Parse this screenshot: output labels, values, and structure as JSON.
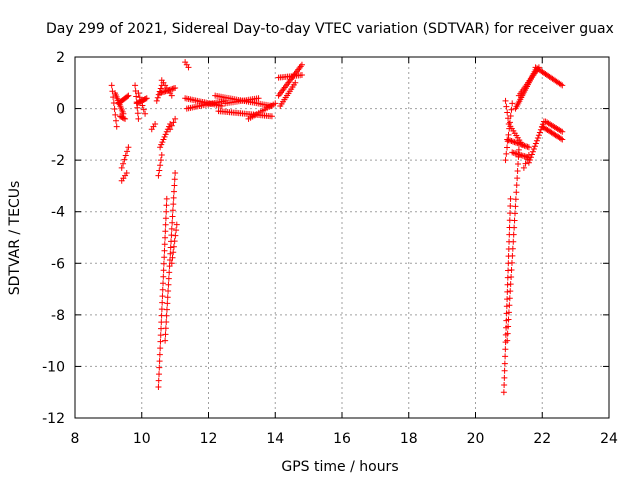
{
  "chart_data": {
    "type": "scatter",
    "title": "Day 299 of 2021, Sidereal Day-to-day VTEC variation (SDTVAR) for receiver guax",
    "xlabel": "GPS time / hours",
    "ylabel": "SDTVAR / TECUs",
    "xlim": [
      8,
      24
    ],
    "ylim": [
      -12,
      2
    ],
    "xticks": [
      "8",
      "10",
      "12",
      "14",
      "16",
      "18",
      "20",
      "22",
      "24"
    ],
    "yticks": [
      "2",
      "0",
      "-2",
      "-4",
      "-6",
      "-8",
      "-10",
      "-12"
    ],
    "grid": true,
    "marker": "+",
    "color": "#ff0000",
    "segments": [
      {
        "x0": 9.1,
        "y0": 0.9,
        "x1": 9.25,
        "y1": -0.7,
        "n": 8
      },
      {
        "x0": 9.2,
        "y0": 0.6,
        "x1": 9.45,
        "y1": -0.2,
        "n": 12
      },
      {
        "x0": 9.3,
        "y0": 0.2,
        "x1": 9.6,
        "y1": 0.5,
        "n": 10
      },
      {
        "x0": 9.35,
        "y0": -0.3,
        "x1": 9.5,
        "y1": -0.4,
        "n": 5
      },
      {
        "x0": 9.4,
        "y0": -2.3,
        "x1": 9.6,
        "y1": -1.5,
        "n": 6
      },
      {
        "x0": 9.4,
        "y0": -2.8,
        "x1": 9.55,
        "y1": -2.5,
        "n": 4
      },
      {
        "x0": 9.8,
        "y0": 0.9,
        "x1": 9.9,
        "y1": -0.4,
        "n": 7
      },
      {
        "x0": 9.85,
        "y0": 0.2,
        "x1": 10.15,
        "y1": 0.4,
        "n": 10
      },
      {
        "x0": 9.9,
        "y0": 0.6,
        "x1": 10.1,
        "y1": -0.2,
        "n": 6
      },
      {
        "x0": 10.3,
        "y0": -0.8,
        "x1": 10.4,
        "y1": -0.6,
        "n": 3
      },
      {
        "x0": 10.45,
        "y0": 0.3,
        "x1": 10.6,
        "y1": 0.9,
        "n": 6
      },
      {
        "x0": 10.55,
        "y0": 0.6,
        "x1": 11.0,
        "y1": 0.8,
        "n": 12
      },
      {
        "x0": 10.6,
        "y0": 1.1,
        "x1": 10.9,
        "y1": 0.5,
        "n": 7
      },
      {
        "x0": 10.5,
        "y0": -10.8,
        "x1": 10.75,
        "y1": -3.5,
        "n": 30
      },
      {
        "x0": 10.5,
        "y0": -2.6,
        "x1": 10.6,
        "y1": -1.8,
        "n": 5
      },
      {
        "x0": 10.55,
        "y0": -1.5,
        "x1": 10.85,
        "y1": -0.6,
        "n": 10
      },
      {
        "x0": 10.7,
        "y0": -9.0,
        "x1": 11.0,
        "y1": -2.5,
        "n": 28
      },
      {
        "x0": 10.9,
        "y0": -6.0,
        "x1": 11.05,
        "y1": -4.5,
        "n": 8
      },
      {
        "x0": 10.85,
        "y0": -0.8,
        "x1": 11.0,
        "y1": -0.4,
        "n": 4
      },
      {
        "x0": 11.3,
        "y0": 1.8,
        "x1": 11.4,
        "y1": 1.6,
        "n": 3
      },
      {
        "x0": 11.3,
        "y0": 0.4,
        "x1": 12.4,
        "y1": 0.1,
        "n": 22
      },
      {
        "x0": 11.35,
        "y0": 0.0,
        "x1": 12.5,
        "y1": 0.3,
        "n": 22
      },
      {
        "x0": 12.2,
        "y0": 0.5,
        "x1": 13.9,
        "y1": 0.1,
        "n": 30
      },
      {
        "x0": 12.3,
        "y0": -0.1,
        "x1": 13.9,
        "y1": -0.3,
        "n": 30
      },
      {
        "x0": 12.5,
        "y0": 0.2,
        "x1": 13.5,
        "y1": 0.4,
        "n": 18
      },
      {
        "x0": 13.2,
        "y0": -0.4,
        "x1": 14.0,
        "y1": 0.2,
        "n": 14
      },
      {
        "x0": 14.1,
        "y0": 0.5,
        "x1": 14.8,
        "y1": 1.7,
        "n": 20
      },
      {
        "x0": 14.1,
        "y0": 1.2,
        "x1": 14.8,
        "y1": 1.3,
        "n": 14
      },
      {
        "x0": 14.15,
        "y0": 0.1,
        "x1": 14.6,
        "y1": 1.0,
        "n": 12
      },
      {
        "x0": 20.85,
        "y0": -11.0,
        "x1": 21.05,
        "y1": -3.5,
        "n": 28
      },
      {
        "x0": 20.95,
        "y0": -9.0,
        "x1": 21.3,
        "y1": -1.6,
        "n": 28
      },
      {
        "x0": 20.9,
        "y0": -2.0,
        "x1": 21.1,
        "y1": 0.2,
        "n": 10
      },
      {
        "x0": 20.9,
        "y0": 0.3,
        "x1": 21.0,
        "y1": -0.6,
        "n": 5
      },
      {
        "x0": 20.95,
        "y0": -1.2,
        "x1": 21.6,
        "y1": -1.5,
        "n": 16
      },
      {
        "x0": 21.0,
        "y0": -0.6,
        "x1": 21.4,
        "y1": -1.4,
        "n": 10
      },
      {
        "x0": 21.1,
        "y0": -1.7,
        "x1": 21.6,
        "y1": -1.9,
        "n": 12
      },
      {
        "x0": 21.2,
        "y0": 0.0,
        "x1": 21.8,
        "y1": 1.5,
        "n": 22
      },
      {
        "x0": 21.3,
        "y0": 0.5,
        "x1": 21.9,
        "y1": 1.6,
        "n": 16
      },
      {
        "x0": 21.6,
        "y0": -2.1,
        "x1": 22.05,
        "y1": -0.5,
        "n": 16
      },
      {
        "x0": 21.8,
        "y0": 1.6,
        "x1": 22.6,
        "y1": 0.9,
        "n": 20
      },
      {
        "x0": 22.0,
        "y0": -0.7,
        "x1": 22.6,
        "y1": -1.2,
        "n": 16
      },
      {
        "x0": 22.1,
        "y0": -0.5,
        "x1": 22.6,
        "y1": -0.9,
        "n": 12
      },
      {
        "x0": 21.45,
        "y0": -2.3,
        "x1": 21.6,
        "y1": -1.8,
        "n": 4
      }
    ]
  }
}
